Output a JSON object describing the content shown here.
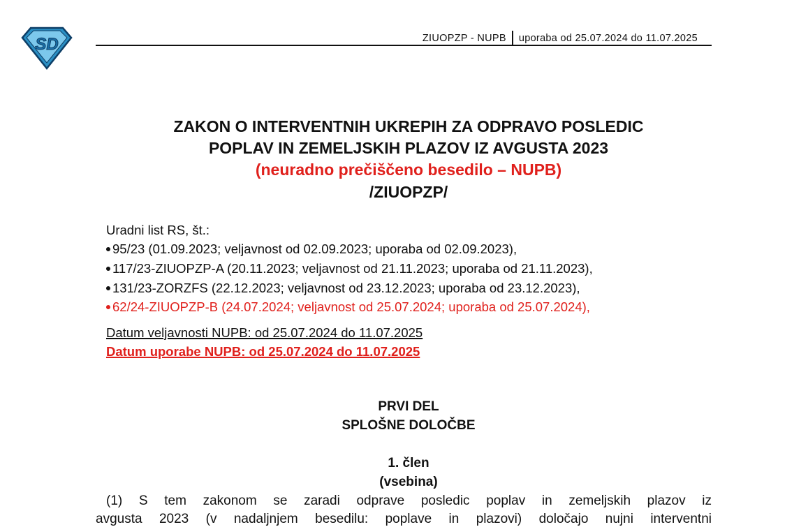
{
  "header": {
    "logo_text": "SD",
    "left": "ZIUOPZP - NUPB",
    "right": "uporaba od 25.07.2024 do 11.07.2025"
  },
  "title": {
    "line1": "ZAKON O INTERVENTNIH UKREPIH ZA ODPRAVO POSLEDIC",
    "line2": "POPLAV IN ZEMELJSKIH PLAZOV IZ AVGUSTA 2023",
    "line3": "(neuradno prečiščeno besedilo – NUPB)",
    "line4": "/ZIUOPZP/"
  },
  "gazette": {
    "label": "Uradni list RS, št.:",
    "items": [
      "95/23 (01.09.2023; veljavnost od 02.09.2023; uporaba od 02.09.2023),",
      "117/23-ZIUOPZP-A (20.11.2023; veljavnost od 21.11.2023; uporaba od 21.11.2023),",
      "131/23-ZORZFS (22.12.2023; veljavnost od 23.12.2023; uporaba od 23.12.2023),",
      "62/24-ZIUOPZP-B (24.07.2024; veljavnost od 25.07.2024; uporaba od 25.07.2024),"
    ]
  },
  "validity": "Datum veljavnosti NUPB: od 25.07.2024 do 11.07.2025",
  "application": "Datum uporabe NUPB: od 25.07.2024 do 11.07.2025",
  "part": {
    "title": "PRVI DEL",
    "subtitle": "SPLOŠNE DOLOČBE"
  },
  "article": {
    "number": "1. člen",
    "name": "(vsebina)",
    "line1": "(1) S tem zakonom se zaradi odprave posledic poplav in zemeljskih plazov iz",
    "line2": "avgusta 2023 (v nadaljnjem besedilu: poplave in plazovi) določajo nujni interventni"
  },
  "colors": {
    "red": "#e0201c",
    "logo": "#2a8fc4"
  }
}
